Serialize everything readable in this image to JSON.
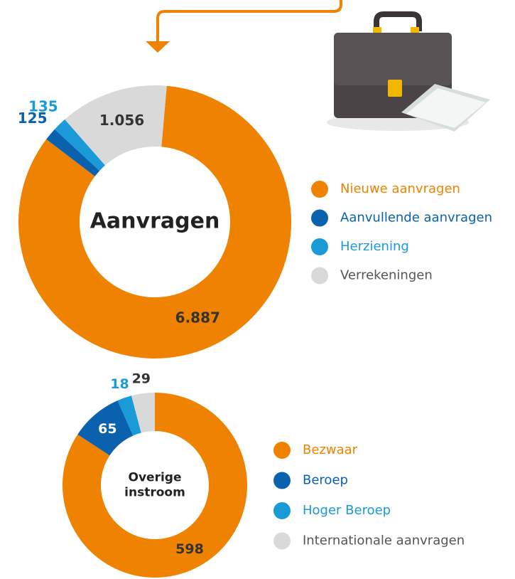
{
  "chart_data": [
    {
      "type": "donut",
      "center_label": [
        "Aanvragen"
      ],
      "categories": [
        "Nieuwe aanvragen",
        "Aanvullende aanvragen",
        "Herziening",
        "Verrekeningen"
      ],
      "values": [
        6887,
        125,
        135,
        1056
      ],
      "value_labels": [
        "6.887",
        "125",
        "135",
        "1.056"
      ],
      "colors": [
        "#ef8200",
        "#0a62ae",
        "#1a9ad6",
        "#d9d9d9"
      ]
    },
    {
      "type": "donut",
      "center_label": [
        "Overige",
        "instroom"
      ],
      "categories": [
        "Bezwaar",
        "Beroep",
        "Hoger Beroep",
        "Internationale aanvragen"
      ],
      "values": [
        598,
        65,
        18,
        29
      ],
      "colors": [
        "#ef8200",
        "#0a62ae",
        "#1a9ad6",
        "#d9d9d9"
      ]
    }
  ]
}
